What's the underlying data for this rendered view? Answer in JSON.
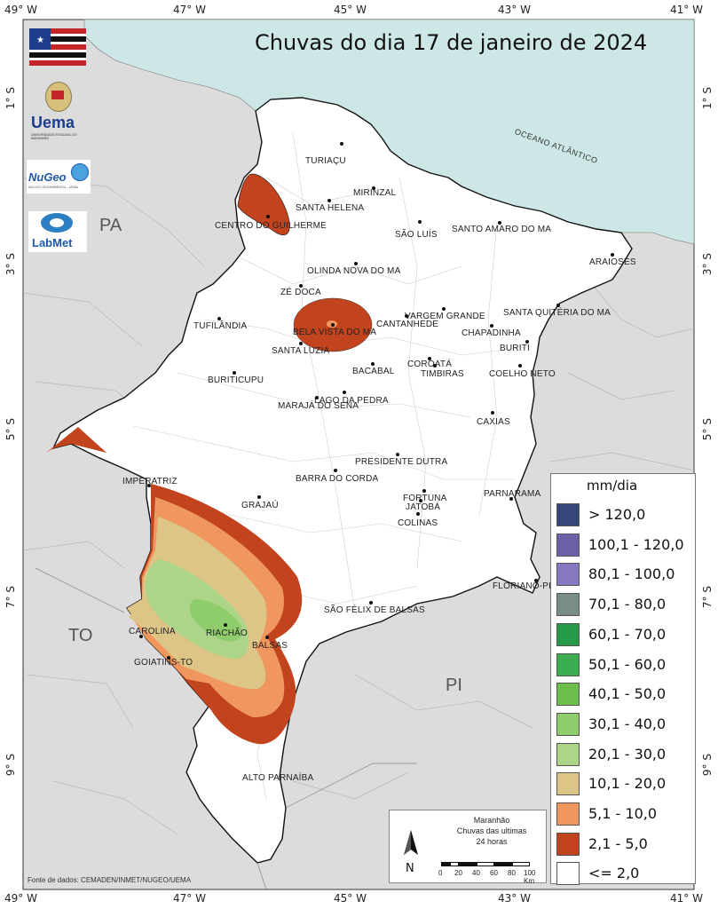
{
  "title": "Chuvas do dia 17 de janeiro de 2024",
  "coordinates": {
    "top": [
      "49° W",
      "47° W",
      "45° W",
      "43° W",
      "41° W"
    ],
    "bottom": [
      "49° W",
      "47° W",
      "45° W",
      "43° W",
      "41° W"
    ],
    "left": [
      "1° S",
      "3° S",
      "5° S",
      "7° S",
      "9° S"
    ],
    "right": [
      "1° S",
      "3° S",
      "5° S",
      "7° S",
      "9° S"
    ]
  },
  "state_labels": {
    "pa": "PA",
    "to": "TO",
    "pi": "PI"
  },
  "ocean_label": "OCEANO ATLÂNTICO",
  "cities": [
    "TURIAÇU",
    "MIRINZAL",
    "SANTA HELENA",
    "CENTRO DO GUILHERME",
    "SÃO LUÍS",
    "SANTO AMARO DO MA",
    "ARAIOSES",
    "OLINDA NOVA DO MA",
    "ZÉ DOCA",
    "VARGEM GRANDE",
    "SANTA QUITÉRIA DO MA",
    "TUFILÂNDIA",
    "CANTANHEDE",
    "BELA VISTA DO MA",
    "CHAPADINHA",
    "SANTA LUZIA",
    "BURITI",
    "COROATÁ",
    "BACABAL",
    "TIMBIRAS",
    "COELHO NETO",
    "BURITICUPU",
    "LAGO DA PEDRA",
    "MARAJÁ DO SENA",
    "CAXIAS",
    "PRESIDENTE DUTRA",
    "BARRA DO CORDA",
    "IMPERATRIZ",
    "FORTUNA",
    "PARNARAMA",
    "GRAJAÚ",
    "JATOBÁ",
    "COLINAS",
    "FLORIANO-PI",
    "SÃO FÉLIX DE BALSAS",
    "CAROLINA",
    "RIACHÃO",
    "BALSAS",
    "GOIATINS-TO",
    "ALTO PARNAÍBA"
  ],
  "legend": {
    "title": "mm/dia",
    "items": [
      {
        "label": "> 120,0",
        "color": "#36467a"
      },
      {
        "label": "100,1 - 120,0",
        "color": "#6c5fa8"
      },
      {
        "label": "80,1 - 100,0",
        "color": "#8777c0"
      },
      {
        "label": "70,1 - 80,0",
        "color": "#7a8c86"
      },
      {
        "label": "60,1 - 70,0",
        "color": "#279b4a"
      },
      {
        "label": "50,1 - 60,0",
        "color": "#39ad4f"
      },
      {
        "label": "40,1 - 50,0",
        "color": "#6cbd4b"
      },
      {
        "label": "30,1 - 40,0",
        "color": "#8fcc6b"
      },
      {
        "label": "20,1 - 30,0",
        "color": "#acd58a"
      },
      {
        "label": "10,1 - 20,0",
        "color": "#dcc586"
      },
      {
        "label": "5,1 - 10,0",
        "color": "#f0975f"
      },
      {
        "label": "2,1 - 5,0",
        "color": "#c1441f"
      },
      {
        "label": "<= 2,0",
        "color": "#ffffff"
      }
    ]
  },
  "info_box": {
    "line1": "Maranhão",
    "line2": "Chuvas das ultimas",
    "line3": "24 horas",
    "north": "N",
    "scale_ticks": [
      "0",
      "20",
      "40",
      "60",
      "80",
      "100 Km"
    ]
  },
  "logos": {
    "uema": "Uema",
    "uema_sub": "UNIVERSIDADE ESTADUAL DO MARANHÃO",
    "nugeo": "NuGeo",
    "nugeo_sub": "NÚCLEO GEOAMBIENTAL - UEMA",
    "labmet": "LabMet"
  },
  "source": "Fonte de dados: CEMADEN/INMET/NUGEO/UEMA",
  "colors": {
    "ocean": "#cde7e7",
    "land": "#dcdcdc",
    "state": "#ffffff",
    "border": "#111111"
  }
}
